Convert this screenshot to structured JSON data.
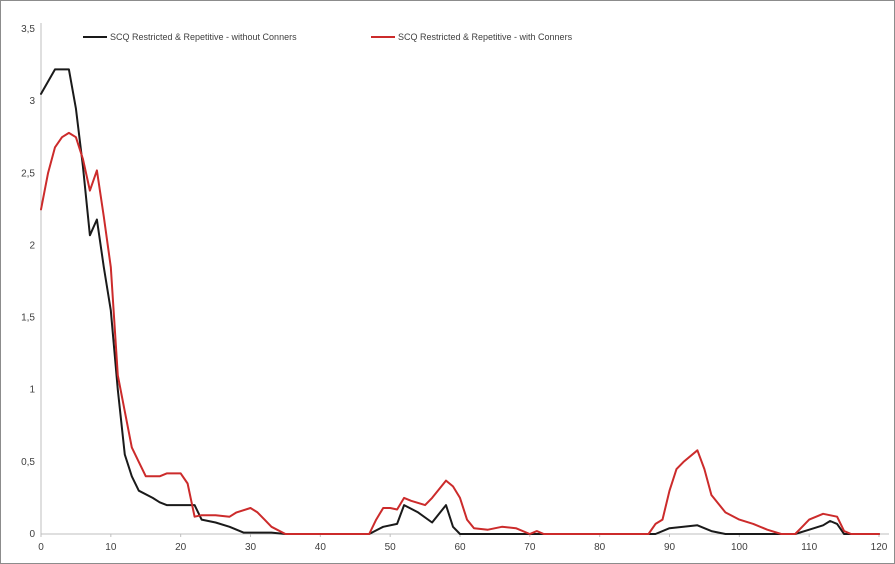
{
  "chart_data": {
    "type": "line",
    "title": "",
    "xlabel": "",
    "ylabel": "",
    "xlim": [
      0,
      120
    ],
    "ylim": [
      0,
      3.5
    ],
    "x_ticks": [
      "0",
      "10",
      "20",
      "30",
      "40",
      "50",
      "60",
      "70",
      "80",
      "90",
      "100",
      "110",
      "120"
    ],
    "y_ticks": [
      "0",
      "0,5",
      "1",
      "1,5",
      "2",
      "2,5",
      "3",
      "3,5"
    ],
    "grid": false,
    "legend_position": "top",
    "series": [
      {
        "name": "SCQ Restricted & Repetitive - without Conners",
        "color": "#1a1a1a",
        "points": [
          [
            0,
            3.05
          ],
          [
            2,
            3.22
          ],
          [
            4,
            3.22
          ],
          [
            5,
            2.95
          ],
          [
            6,
            2.55
          ],
          [
            7,
            2.07
          ],
          [
            8,
            2.18
          ],
          [
            9,
            1.85
          ],
          [
            10,
            1.55
          ],
          [
            11,
            1.0
          ],
          [
            12,
            0.55
          ],
          [
            13,
            0.4
          ],
          [
            14,
            0.3
          ],
          [
            16,
            0.25
          ],
          [
            17,
            0.22
          ],
          [
            18,
            0.2
          ],
          [
            20,
            0.2
          ],
          [
            22,
            0.2
          ],
          [
            23,
            0.1
          ],
          [
            25,
            0.08
          ],
          [
            27,
            0.05
          ],
          [
            29,
            0.01
          ],
          [
            33,
            0.01
          ],
          [
            35,
            0.0
          ],
          [
            47,
            0.0
          ],
          [
            49,
            0.05
          ],
          [
            51,
            0.07
          ],
          [
            52,
            0.2
          ],
          [
            54,
            0.15
          ],
          [
            56,
            0.08
          ],
          [
            58,
            0.2
          ],
          [
            59,
            0.05
          ],
          [
            60,
            0.0
          ],
          [
            88,
            0.0
          ],
          [
            90,
            0.04
          ],
          [
            92,
            0.05
          ],
          [
            94,
            0.06
          ],
          [
            96,
            0.02
          ],
          [
            98,
            0.0
          ],
          [
            108,
            0.0
          ],
          [
            110,
            0.03
          ],
          [
            112,
            0.06
          ],
          [
            113,
            0.09
          ],
          [
            114,
            0.07
          ],
          [
            115,
            0.0
          ],
          [
            120,
            0.0
          ]
        ]
      },
      {
        "name": "SCQ Restricted & Repetitive - with Conners",
        "color": "#cc2b2b",
        "points": [
          [
            0,
            2.25
          ],
          [
            1,
            2.5
          ],
          [
            2,
            2.68
          ],
          [
            3,
            2.75
          ],
          [
            4,
            2.78
          ],
          [
            5,
            2.75
          ],
          [
            6,
            2.6
          ],
          [
            7,
            2.38
          ],
          [
            8,
            2.52
          ],
          [
            9,
            2.2
          ],
          [
            10,
            1.85
          ],
          [
            11,
            1.1
          ],
          [
            12,
            0.85
          ],
          [
            13,
            0.6
          ],
          [
            14,
            0.5
          ],
          [
            15,
            0.4
          ],
          [
            17,
            0.4
          ],
          [
            18,
            0.42
          ],
          [
            20,
            0.42
          ],
          [
            21,
            0.35
          ],
          [
            22,
            0.12
          ],
          [
            23,
            0.13
          ],
          [
            25,
            0.13
          ],
          [
            27,
            0.12
          ],
          [
            28,
            0.15
          ],
          [
            30,
            0.18
          ],
          [
            31,
            0.15
          ],
          [
            32,
            0.1
          ],
          [
            33,
            0.05
          ],
          [
            35,
            0.0
          ],
          [
            47,
            0.0
          ],
          [
            48,
            0.1
          ],
          [
            49,
            0.18
          ],
          [
            50,
            0.18
          ],
          [
            51,
            0.17
          ],
          [
            52,
            0.25
          ],
          [
            53,
            0.23
          ],
          [
            55,
            0.2
          ],
          [
            56,
            0.25
          ],
          [
            58,
            0.37
          ],
          [
            59,
            0.33
          ],
          [
            60,
            0.25
          ],
          [
            61,
            0.1
          ],
          [
            62,
            0.04
          ],
          [
            64,
            0.03
          ],
          [
            66,
            0.05
          ],
          [
            68,
            0.04
          ],
          [
            70,
            0.0
          ],
          [
            71,
            0.02
          ],
          [
            72,
            0.0
          ],
          [
            87,
            0.0
          ],
          [
            88,
            0.07
          ],
          [
            89,
            0.1
          ],
          [
            90,
            0.3
          ],
          [
            91,
            0.45
          ],
          [
            92,
            0.5
          ],
          [
            94,
            0.58
          ],
          [
            95,
            0.45
          ],
          [
            96,
            0.27
          ],
          [
            98,
            0.15
          ],
          [
            100,
            0.1
          ],
          [
            102,
            0.07
          ],
          [
            104,
            0.03
          ],
          [
            106,
            0.0
          ],
          [
            108,
            0.0
          ],
          [
            109,
            0.05
          ],
          [
            110,
            0.1
          ],
          [
            112,
            0.14
          ],
          [
            114,
            0.12
          ],
          [
            115,
            0.02
          ],
          [
            116,
            0.0
          ],
          [
            120,
            0.0
          ]
        ]
      }
    ]
  }
}
